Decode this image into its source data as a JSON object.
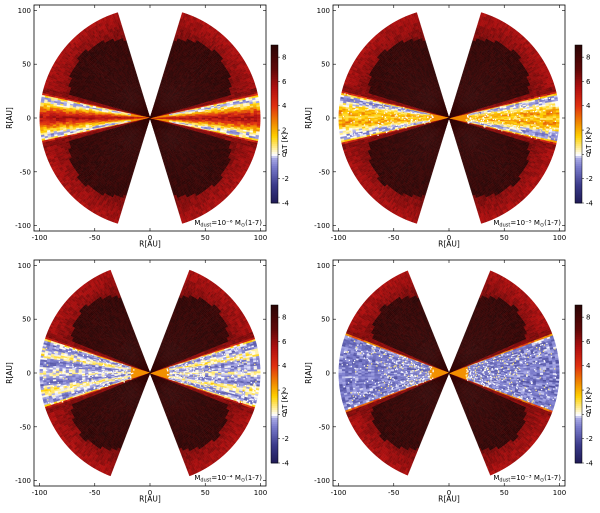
{
  "chart_data": [
    {
      "type": "heatmap",
      "panel": "top-left",
      "xlabel": "R[AU]",
      "ylabel": "R[AU]",
      "xlim": [
        -105,
        105
      ],
      "ylim": [
        -105,
        105
      ],
      "xticks": [
        "-100",
        "-50",
        "0",
        "50",
        "100"
      ],
      "yticks": [
        "100",
        "50",
        "0",
        "-50",
        "-100"
      ],
      "colorbar": {
        "label": "ΔT [K]",
        "range": [
          -4,
          9
        ],
        "ticks": [
          "8",
          "6",
          "4",
          "2",
          "0",
          "-2",
          "-4"
        ]
      },
      "annotation": {
        "main": "M",
        "sub": "dust",
        "rest": "=10⁻⁶ M",
        "sun": "⊙",
        "tail": "(1-7)"
      },
      "midplane_profile": "hot",
      "band_opening_deg": 13,
      "cone_half_angle_deg": 17
    },
    {
      "type": "heatmap",
      "panel": "top-right",
      "xlabel": "R[AU]",
      "ylabel": "R[AU]",
      "xlim": [
        -105,
        105
      ],
      "ylim": [
        -105,
        105
      ],
      "xticks": [
        "-100",
        "-50",
        "0",
        "50",
        "100"
      ],
      "yticks": [
        "100",
        "50",
        "0",
        "-50",
        "-100"
      ],
      "colorbar": {
        "label": "ΔT [K]",
        "range": [
          -4,
          9
        ],
        "ticks": [
          "8",
          "6",
          "4",
          "2",
          "0",
          "-2",
          "-4"
        ]
      },
      "annotation": {
        "main": "M",
        "sub": "dust",
        "rest": "=10⁻⁵ M",
        "sun": "⊙",
        "tail": "(1-7)"
      },
      "midplane_profile": "warm",
      "band_opening_deg": 14,
      "cone_half_angle_deg": 17
    },
    {
      "type": "heatmap",
      "panel": "bottom-left",
      "xlabel": "R[AU]",
      "ylabel": "R[AU]",
      "xlim": [
        -105,
        105
      ],
      "ylim": [
        -105,
        105
      ],
      "xticks": [
        "-100",
        "-50",
        "0",
        "50",
        "100"
      ],
      "yticks": [
        "100",
        "50",
        "0",
        "-50",
        "-100"
      ],
      "colorbar": {
        "label": "ΔT [K]",
        "range": [
          -4,
          9
        ],
        "ticks": [
          "8",
          "6",
          "4",
          "2",
          "0",
          "-2",
          "-4"
        ]
      },
      "annotation": {
        "main": "M",
        "sub": "dust",
        "rest": "=10⁻⁴ M",
        "sun": "⊙",
        "tail": "(1-7)"
      },
      "midplane_profile": "cool",
      "band_opening_deg": 19,
      "cone_half_angle_deg": 21
    },
    {
      "type": "heatmap",
      "panel": "bottom-right",
      "xlabel": "R[AU]",
      "ylabel": "R[AU]",
      "xlim": [
        -105,
        105
      ],
      "ylim": [
        -105,
        105
      ],
      "xticks": [
        "-100",
        "-50",
        "0",
        "50",
        "100"
      ],
      "yticks": [
        "100",
        "50",
        "0",
        "-50",
        "-100"
      ],
      "colorbar": {
        "label": "ΔT [K]",
        "range": [
          -4,
          9
        ],
        "ticks": [
          "8",
          "6",
          "4",
          "2",
          "0",
          "-2",
          "-4"
        ]
      },
      "annotation": {
        "main": "M",
        "sub": "dust",
        "rest": "=10⁻³ M",
        "sun": "⊙",
        "tail": "(1-7)"
      },
      "midplane_profile": "cold",
      "band_opening_deg": 21,
      "cone_half_angle_deg": 22
    }
  ],
  "colors": {
    "background_cone": "#ffffff",
    "dark_interior": "#2a0606",
    "outer_rim": "#cc1a14",
    "scale": [
      "#1e1a55",
      "#3b3b8a",
      "#7b7ccc",
      "#a9aae6",
      "#ffffff",
      "#ffe98a",
      "#ffd000",
      "#f08a00",
      "#e03010",
      "#b01010",
      "#600808",
      "#2a0606"
    ]
  }
}
